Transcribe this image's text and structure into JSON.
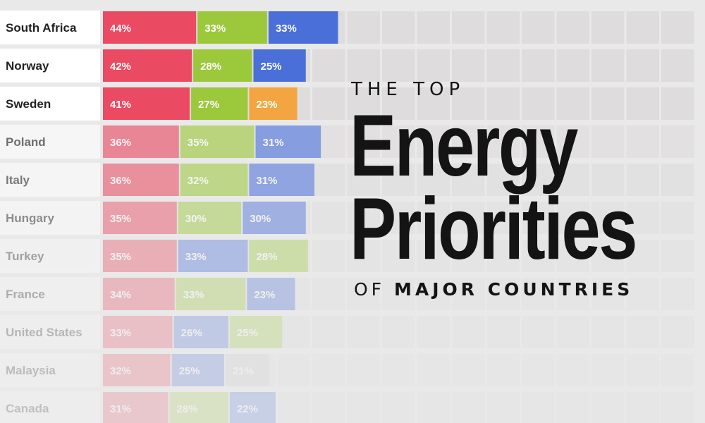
{
  "title": {
    "top": "THE TOP",
    "line1": "Energy",
    "line2": "Priorities",
    "sub_prefix": "OF",
    "sub_main": "MAJOR COUNTRIES"
  },
  "colors": {
    "red": "#ea4b62",
    "green": "#9cc83c",
    "blue": "#4a6fd9",
    "orange": "#f2a541",
    "gray": "#c8c8c8",
    "background": "#e9e9e9",
    "track": "#dedcdc"
  },
  "chart_data": {
    "type": "bar",
    "orientation": "horizontal",
    "stacked": true,
    "countries": [
      {
        "name": "South Africa",
        "values": [
          44,
          33,
          33
        ],
        "labels": [
          "44%",
          "33%",
          "33%"
        ],
        "colors": [
          "red",
          "green",
          "blue"
        ]
      },
      {
        "name": "Norway",
        "values": [
          42,
          28,
          25
        ],
        "labels": [
          "42%",
          "28%",
          "25%"
        ],
        "colors": [
          "red",
          "green",
          "blue"
        ]
      },
      {
        "name": "Sweden",
        "values": [
          41,
          27,
          23
        ],
        "labels": [
          "41%",
          "27%",
          "23%"
        ],
        "colors": [
          "red",
          "green",
          "orange"
        ]
      },
      {
        "name": "Poland",
        "values": [
          36,
          35,
          31
        ],
        "labels": [
          "36%",
          "35%",
          "31%"
        ],
        "colors": [
          "red",
          "green",
          "blue"
        ]
      },
      {
        "name": "Italy",
        "values": [
          36,
          32,
          31
        ],
        "labels": [
          "36%",
          "32%",
          "31%"
        ],
        "colors": [
          "red",
          "green",
          "blue"
        ]
      },
      {
        "name": "Hungary",
        "values": [
          35,
          30,
          30
        ],
        "labels": [
          "35%",
          "30%",
          "30%"
        ],
        "colors": [
          "red",
          "green",
          "blue"
        ]
      },
      {
        "name": "Turkey",
        "values": [
          35,
          33,
          28
        ],
        "labels": [
          "35%",
          "33%",
          "28%"
        ],
        "colors": [
          "red",
          "blue",
          "green"
        ]
      },
      {
        "name": "France",
        "values": [
          34,
          33,
          23
        ],
        "labels": [
          "34%",
          "33%",
          "23%"
        ],
        "colors": [
          "red",
          "green",
          "blue"
        ]
      },
      {
        "name": "United States",
        "values": [
          33,
          26,
          25
        ],
        "labels": [
          "33%",
          "26%",
          "25%"
        ],
        "colors": [
          "red",
          "blue",
          "green"
        ]
      },
      {
        "name": "Malaysia",
        "values": [
          32,
          25,
          21
        ],
        "labels": [
          "32%",
          "25%",
          "21%"
        ],
        "colors": [
          "red",
          "blue",
          "gray"
        ]
      },
      {
        "name": "Canada",
        "values": [
          31,
          28,
          22
        ],
        "labels": [
          "31%",
          "28%",
          "22%"
        ],
        "colors": [
          "red",
          "green",
          "blue"
        ]
      }
    ],
    "row_opacity": [
      1,
      1,
      1,
      0.62,
      0.56,
      0.46,
      0.36,
      0.3,
      0.25,
      0.22,
      0.2
    ]
  }
}
